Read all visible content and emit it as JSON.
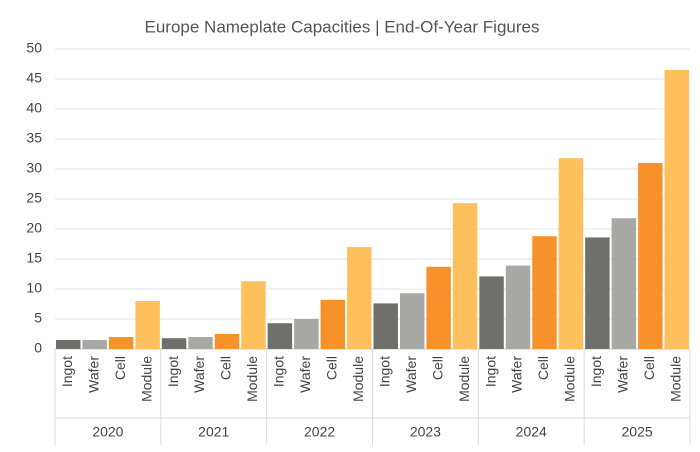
{
  "chart_data": {
    "type": "bar",
    "title": "Europe Nameplate Capacities | End-Of-Year Figures",
    "categories": [
      "2020",
      "2021",
      "2022",
      "2023",
      "2024",
      "2025"
    ],
    "series": [
      {
        "name": "Ingot",
        "color": "#6f6f6b",
        "values": [
          1.5,
          1.8,
          4.3,
          7.6,
          12.1,
          18.6
        ]
      },
      {
        "name": "Wafer",
        "color": "#a8a8a4",
        "values": [
          1.5,
          2,
          5,
          9.3,
          13.9,
          21.8
        ]
      },
      {
        "name": "Cell",
        "color": "#f7922b",
        "values": [
          2,
          2.5,
          8.2,
          13.7,
          18.8,
          31
        ]
      },
      {
        "name": "Module",
        "color": "#fec05c",
        "values": [
          8,
          11.3,
          17,
          24.3,
          31.8,
          46.5
        ]
      }
    ],
    "ylim": [
      0,
      50
    ],
    "yticks": [
      0,
      5,
      10,
      15,
      20,
      25,
      30,
      35,
      40,
      45,
      50
    ],
    "grid": true
  }
}
